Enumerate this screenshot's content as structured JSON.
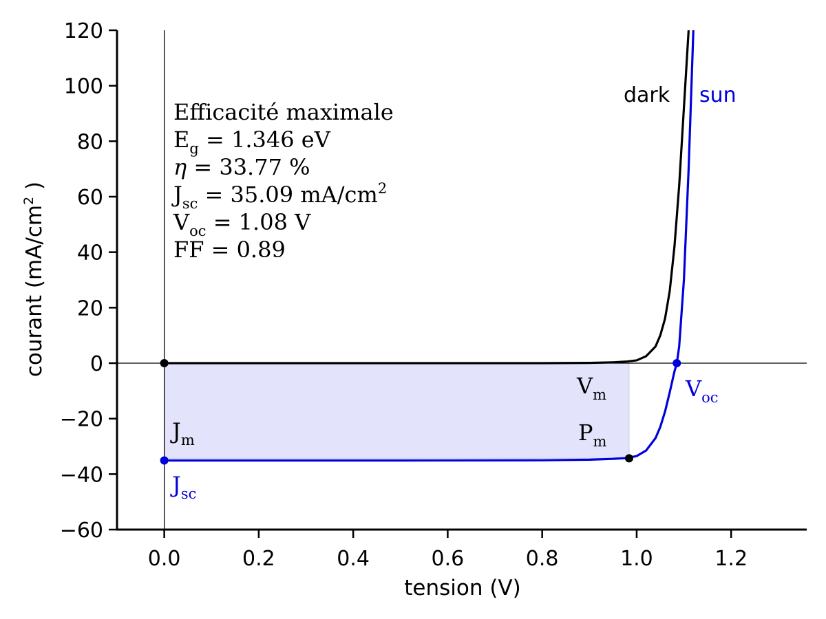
{
  "chart_data": {
    "type": "line",
    "xlabel": "tension (V)",
    "ylabel": "courant (mA/cm",
    "ylabel_sup": "2",
    "ylabel_close": " )",
    "xlim": [
      -0.1,
      1.36
    ],
    "ylim": [
      -60,
      120
    ],
    "xticks": [
      0.0,
      0.2,
      0.4,
      0.6,
      0.8,
      1.0,
      1.2
    ],
    "xtick_labels": [
      "0.0",
      "0.2",
      "0.4",
      "0.6",
      "0.8",
      "1.0",
      "1.2"
    ],
    "yticks": [
      -60,
      -40,
      -20,
      0,
      20,
      40,
      60,
      80,
      100,
      120
    ],
    "ytick_labels": [
      "−60",
      "−40",
      "−20",
      "0",
      "20",
      "40",
      "60",
      "80",
      "100",
      "120"
    ],
    "colors": {
      "dark": "#000000",
      "sun": "#0000dd",
      "fill": "#e3e3fb",
      "fill_edge": "#c8c8ee"
    },
    "series": [
      {
        "name": "dark",
        "color": "#000000",
        "x": [
          0.0,
          0.5,
          0.8,
          0.9,
          0.95,
          0.98,
          1.0,
          1.02,
          1.04,
          1.05,
          1.06,
          1.07,
          1.08,
          1.09,
          1.1,
          1.11
        ],
        "y": [
          0.0,
          0.0,
          0.0,
          0.1,
          0.3,
          0.6,
          1.0,
          2.5,
          6.0,
          10.0,
          16.0,
          26.0,
          42.0,
          64.0,
          92.0,
          120.0
        ]
      },
      {
        "name": "sun",
        "color": "#0000dd",
        "x": [
          0.0,
          0.5,
          0.8,
          0.9,
          0.95,
          0.98,
          1.0,
          1.02,
          1.04,
          1.05,
          1.06,
          1.07,
          1.08,
          1.085,
          1.09,
          1.1,
          1.11,
          1.12
        ],
        "y": [
          -35.09,
          -35.09,
          -35.0,
          -34.8,
          -34.5,
          -34.2,
          -33.5,
          -31.5,
          -27.0,
          -23.0,
          -17.5,
          -10.5,
          -3.0,
          0.0,
          6.0,
          30.0,
          70.0,
          120.0
        ]
      }
    ],
    "fill_rect": {
      "x0": 0.0,
      "x1": 0.984,
      "y0": -34.3,
      "y1": 0.0
    },
    "points": [
      {
        "name": "origin-point",
        "x": 0.0,
        "y": 0.0,
        "color": "#000000"
      },
      {
        "name": "jsc-point",
        "x": 0.0,
        "y": -35.09,
        "color": "#0000dd"
      },
      {
        "name": "pm-point",
        "x": 0.984,
        "y": -34.3,
        "color": "#000000"
      },
      {
        "name": "voc-point",
        "x": 1.085,
        "y": 0.0,
        "color": "#0000dd"
      }
    ],
    "legend": {
      "dark": "dark",
      "sun": "sun"
    },
    "annotations": {
      "title_line": "Efficacité maximale",
      "eg_main": "E",
      "eg_sub": "g",
      "eg_value": " = 1.346 eV",
      "eta_symbol": "η",
      "eta_value": " = 33.77 %",
      "jsc_main": "J",
      "jsc_sub": "sc",
      "jsc_value": " = 35.09 mA/cm",
      "jsc_value_sup": "2",
      "voc_main": "V",
      "voc_sub": "oc",
      "voc_value": " = 1.08 V",
      "ff_line": "FF = 0.89",
      "vm_main": "V",
      "vm_sub": "m",
      "pm_main": "P",
      "pm_sub": "m",
      "jm_main": "J",
      "jm_sub": "m",
      "jsc_label_main": "J",
      "jsc_label_sub": "sc",
      "voc_label_main": "V",
      "voc_label_sub": "oc"
    }
  }
}
